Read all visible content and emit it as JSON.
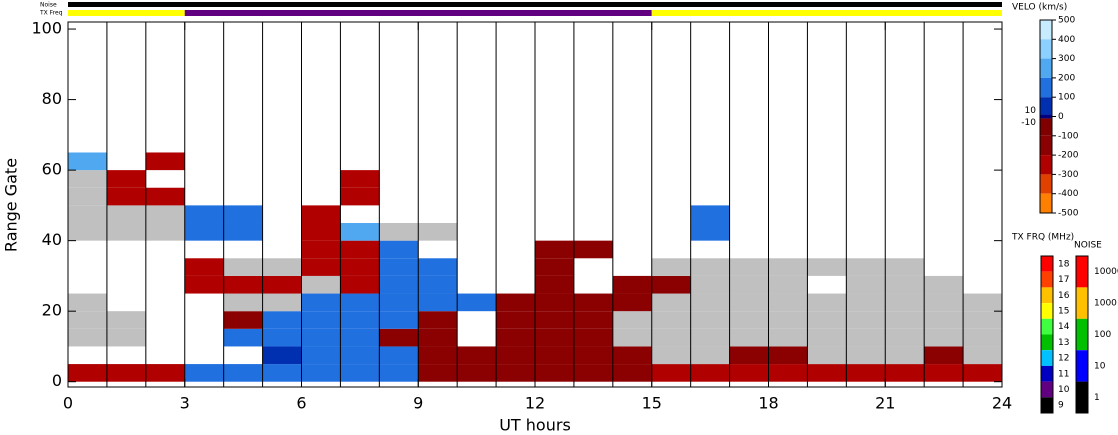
{
  "chart_data": {
    "type": "heatmap",
    "xlabel": "UT hours",
    "ylabel": "Range Gate",
    "xlim": [
      0,
      24
    ],
    "xticks": [
      0,
      3,
      6,
      9,
      12,
      15,
      18,
      21,
      24
    ],
    "ylim": [
      -1.5,
      102
    ],
    "yticks": [
      0,
      20,
      40,
      60,
      80,
      100
    ],
    "x": [
      0,
      1,
      2,
      3,
      4,
      5,
      6,
      7,
      8,
      9,
      10,
      11,
      12,
      13,
      14,
      15,
      16,
      17,
      18,
      19,
      20,
      21,
      22,
      23
    ],
    "y": [
      0,
      5,
      10,
      15,
      20,
      25,
      30,
      35,
      40,
      45,
      50,
      55,
      60
    ],
    "values": [
      [
        -200,
        -200,
        -200,
        150,
        150,
        150,
        150,
        150,
        150,
        -150,
        -150,
        -150,
        -150,
        -150,
        -150,
        -200,
        -200,
        -200,
        -200,
        -200,
        -200,
        -200,
        -200,
        -200
      ],
      [
        null,
        null,
        null,
        null,
        null,
        100,
        150,
        150,
        150,
        -100,
        -150,
        -100,
        -150,
        -150,
        -150,
        0,
        0,
        -100,
        -100,
        0,
        0,
        0,
        -150,
        0
      ],
      [
        0,
        0,
        null,
        null,
        150,
        150,
        150,
        150,
        -100,
        -100,
        null,
        -100,
        -100,
        -100,
        0,
        0,
        0,
        0,
        0,
        0,
        0,
        0,
        0,
        0
      ],
      [
        0,
        0,
        null,
        null,
        -100,
        150,
        150,
        150,
        150,
        -100,
        null,
        -100,
        -150,
        -100,
        0,
        0,
        0,
        0,
        0,
        0,
        0,
        0,
        0,
        0
      ],
      [
        0,
        null,
        null,
        null,
        0,
        0,
        150,
        200,
        200,
        150,
        200,
        -100,
        -100,
        -100,
        -100,
        0,
        0,
        0,
        0,
        0,
        0,
        0,
        0,
        0
      ],
      [
        null,
        null,
        null,
        -200,
        -200,
        -200,
        0,
        -200,
        150,
        150,
        null,
        null,
        -100,
        null,
        -100,
        -100,
        0,
        0,
        0,
        null,
        0,
        0,
        0,
        null
      ],
      [
        null,
        null,
        null,
        -200,
        0,
        0,
        -200,
        -250,
        200,
        150,
        null,
        null,
        -100,
        null,
        null,
        0,
        0,
        0,
        0,
        0,
        0,
        0,
        null,
        null
      ],
      [
        null,
        null,
        null,
        null,
        null,
        null,
        -200,
        -250,
        200,
        null,
        null,
        null,
        -150,
        -100,
        null,
        null,
        null,
        null,
        null,
        null,
        null,
        null,
        null,
        null
      ],
      [
        0,
        0,
        0,
        200,
        200,
        null,
        -200,
        300,
        0,
        0,
        null,
        null,
        null,
        null,
        null,
        null,
        200,
        null,
        null,
        null,
        null,
        null,
        null,
        null
      ],
      [
        0,
        0,
        0,
        200,
        200,
        null,
        -200,
        null,
        null,
        null,
        null,
        null,
        null,
        null,
        null,
        null,
        200,
        null,
        null,
        null,
        null,
        null,
        null,
        null
      ],
      [
        0,
        -200,
        -200,
        null,
        null,
        null,
        null,
        -200,
        null,
        null,
        null,
        null,
        null,
        null,
        null,
        null,
        null,
        null,
        null,
        null,
        null,
        null,
        null,
        null
      ],
      [
        0,
        -250,
        null,
        null,
        null,
        null,
        null,
        -200,
        null,
        null,
        null,
        null,
        null,
        null,
        null,
        null,
        null,
        null,
        null,
        null,
        null,
        null,
        null,
        null
      ],
      [
        300,
        null,
        -200,
        null,
        null,
        null,
        null,
        null,
        null,
        null,
        null,
        null,
        null,
        null,
        null,
        null,
        null,
        null,
        null,
        null,
        null,
        null,
        null,
        null
      ]
    ],
    "ground_scatter_color": "#c0c0c0",
    "scan_lines": [
      1,
      2,
      3,
      4,
      5,
      6,
      7,
      8,
      9,
      10,
      11,
      12,
      13,
      14,
      15,
      16,
      17,
      18,
      19,
      20,
      21,
      22,
      23
    ],
    "noise_bar": {
      "label": "Noise",
      "color": "#000000"
    },
    "freq_bar": {
      "label": "TX Freq",
      "segments": [
        {
          "start": 0,
          "end": 3,
          "color": "#ffff00"
        },
        {
          "start": 3,
          "end": 15,
          "color": "#600080"
        },
        {
          "start": 15,
          "end": 24,
          "color": "#ffff00"
        }
      ]
    },
    "velocity_scale": {
      "title": "VELO (km/s)",
      "ticks": [
        500,
        400,
        300,
        200,
        100,
        0,
        -100,
        -200,
        -300,
        -400,
        -500
      ],
      "small_ticks": [
        10,
        -10
      ],
      "stops": [
        {
          "value": 500,
          "color": "#c8ecff"
        },
        {
          "value": 400,
          "color": "#8cd0ff"
        },
        {
          "value": 300,
          "color": "#50a8f0"
        },
        {
          "value": 200,
          "color": "#2070e0"
        },
        {
          "value": 100,
          "color": "#0030b0"
        },
        {
          "value": 10,
          "color": "#000080"
        },
        {
          "value": -10,
          "color": "#800000"
        },
        {
          "value": -100,
          "color": "#8b0000"
        },
        {
          "value": -200,
          "color": "#b00000"
        },
        {
          "value": -300,
          "color": "#e04000"
        },
        {
          "value": -400,
          "color": "#ff8000"
        },
        {
          "value": -500,
          "color": "#ffd4a0"
        }
      ]
    },
    "freq_scale": {
      "title": "TX FRQ (MHz)",
      "levels": [
        {
          "value": 18,
          "color": "#ff0000"
        },
        {
          "value": 17,
          "color": "#ff4000"
        },
        {
          "value": 16,
          "color": "#ffc000"
        },
        {
          "value": 15,
          "color": "#ffff00"
        },
        {
          "value": 14,
          "color": "#40ff40"
        },
        {
          "value": 13,
          "color": "#00c000"
        },
        {
          "value": 12,
          "color": "#00c0ff"
        },
        {
          "value": 11,
          "color": "#0000c0"
        },
        {
          "value": 10,
          "color": "#600080"
        },
        {
          "value": 9,
          "color": "#000000"
        }
      ]
    },
    "noise_scale": {
      "title": "NOISE",
      "levels": [
        {
          "value": 10000,
          "color": "#ff0000"
        },
        {
          "value": 1000,
          "color": "#ffc000"
        },
        {
          "value": 100,
          "color": "#00c000"
        },
        {
          "value": 10,
          "color": "#0000ff"
        },
        {
          "value": 1,
          "color": "#000000"
        }
      ]
    }
  }
}
